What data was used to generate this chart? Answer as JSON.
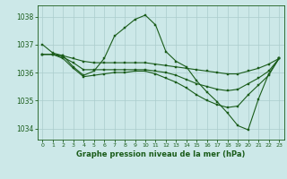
{
  "title": "Graphe pression niveau de la mer (hPa)",
  "bg_color": "#cce8e8",
  "grid_color": "#aacccc",
  "line_color": "#1a5c1a",
  "xlim": [
    -0.5,
    23.5
  ],
  "ylim": [
    1033.6,
    1038.4
  ],
  "yticks": [
    1034,
    1035,
    1036,
    1037,
    1038
  ],
  "xticks": [
    0,
    1,
    2,
    3,
    4,
    5,
    6,
    7,
    8,
    9,
    10,
    11,
    12,
    13,
    14,
    15,
    16,
    17,
    18,
    19,
    20,
    21,
    22,
    23
  ],
  "series1_x": [
    0,
    1,
    2,
    3,
    4,
    5,
    6,
    7,
    8,
    9,
    10,
    11,
    12,
    13,
    14,
    15,
    16,
    17,
    18,
    19,
    20,
    21,
    22,
    23
  ],
  "series1_y": [
    1037.0,
    1036.7,
    1036.6,
    1036.2,
    1035.9,
    1036.05,
    1036.5,
    1037.3,
    1037.6,
    1037.9,
    1038.05,
    1037.7,
    1036.75,
    1036.4,
    1036.2,
    1035.7,
    1035.3,
    1034.95,
    1034.55,
    1034.1,
    1033.95,
    1035.05,
    1035.95,
    1036.5
  ],
  "series2_x": [
    0,
    1,
    2,
    3,
    4,
    5,
    6,
    7,
    8,
    9,
    10,
    11,
    12,
    13,
    14,
    15,
    16,
    17,
    18,
    19,
    20,
    21,
    22,
    23
  ],
  "series2_y": [
    1036.65,
    1036.65,
    1036.6,
    1036.5,
    1036.4,
    1036.35,
    1036.35,
    1036.35,
    1036.35,
    1036.35,
    1036.35,
    1036.3,
    1036.25,
    1036.2,
    1036.15,
    1036.1,
    1036.05,
    1036.0,
    1035.95,
    1035.95,
    1036.05,
    1036.15,
    1036.3,
    1036.5
  ],
  "series3_x": [
    0,
    1,
    2,
    3,
    4,
    5,
    6,
    7,
    8,
    9,
    10,
    11,
    12,
    13,
    14,
    15,
    16,
    17,
    18,
    19,
    20,
    21,
    22,
    23
  ],
  "series3_y": [
    1036.65,
    1036.65,
    1036.55,
    1036.35,
    1036.1,
    1036.1,
    1036.1,
    1036.1,
    1036.1,
    1036.1,
    1036.1,
    1036.05,
    1036.0,
    1035.9,
    1035.75,
    1035.6,
    1035.5,
    1035.4,
    1035.35,
    1035.4,
    1035.6,
    1035.8,
    1036.05,
    1036.5
  ],
  "series4_x": [
    0,
    1,
    2,
    3,
    4,
    5,
    6,
    7,
    8,
    9,
    10,
    11,
    12,
    13,
    14,
    15,
    16,
    17,
    18,
    19,
    20,
    21,
    22,
    23
  ],
  "series4_y": [
    1036.65,
    1036.65,
    1036.5,
    1036.15,
    1035.85,
    1035.9,
    1035.95,
    1036.0,
    1036.0,
    1036.05,
    1036.05,
    1035.95,
    1035.8,
    1035.65,
    1035.45,
    1035.2,
    1035.0,
    1034.85,
    1034.75,
    1034.8,
    1035.2,
    1035.55,
    1035.9,
    1036.5
  ]
}
